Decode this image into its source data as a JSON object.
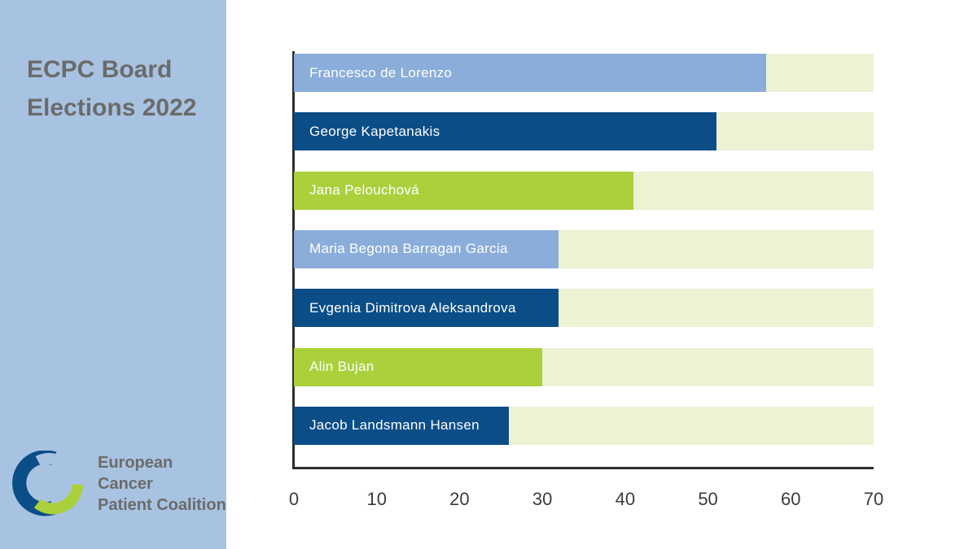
{
  "page": {
    "background": "#ffffff"
  },
  "sidebar": {
    "background": "#a8c3e1",
    "title": "ECPC Board Elections 2022",
    "title_color": "#6b6b6b",
    "logo": {
      "name": "ecpc-logo",
      "text_line1": "European Cancer",
      "text_line2": "Patient Coalition",
      "colors": {
        "dark_blue": "#0b4d87",
        "light_blue": "#a8c3e1",
        "green": "#aad03c"
      }
    }
  },
  "chart_data": {
    "type": "bar",
    "orientation": "horizontal",
    "title": "ECPC Board Elections 2022",
    "categories": [
      "Francesco de Lorenzo",
      "George Kapetanakis",
      "Jana Pelouchová",
      "Maria Begona Barragan Garcia",
      "Evgenia Dimitrova Aleksandrova",
      "Alin Bujan",
      "Jacob Landsmann Hansen"
    ],
    "values": [
      57,
      51,
      41,
      32,
      32,
      30,
      26
    ],
    "bar_colors": [
      "#8badd9",
      "#0b4d87",
      "#aad03c",
      "#8badd9",
      "#0b4d87",
      "#aad03c",
      "#0b4d87"
    ],
    "track_color": "#ecf2d3",
    "bar_label_color": "#ffffff",
    "xlabel": "",
    "ylabel": "",
    "xlim": [
      0,
      70
    ],
    "x_ticks": [
      "0",
      "10",
      "20",
      "30",
      "40",
      "50",
      "60",
      "70"
    ],
    "axis_color": "#2e2e2e",
    "tick_color": "#3b3b3b",
    "grid": false,
    "legend": false
  }
}
